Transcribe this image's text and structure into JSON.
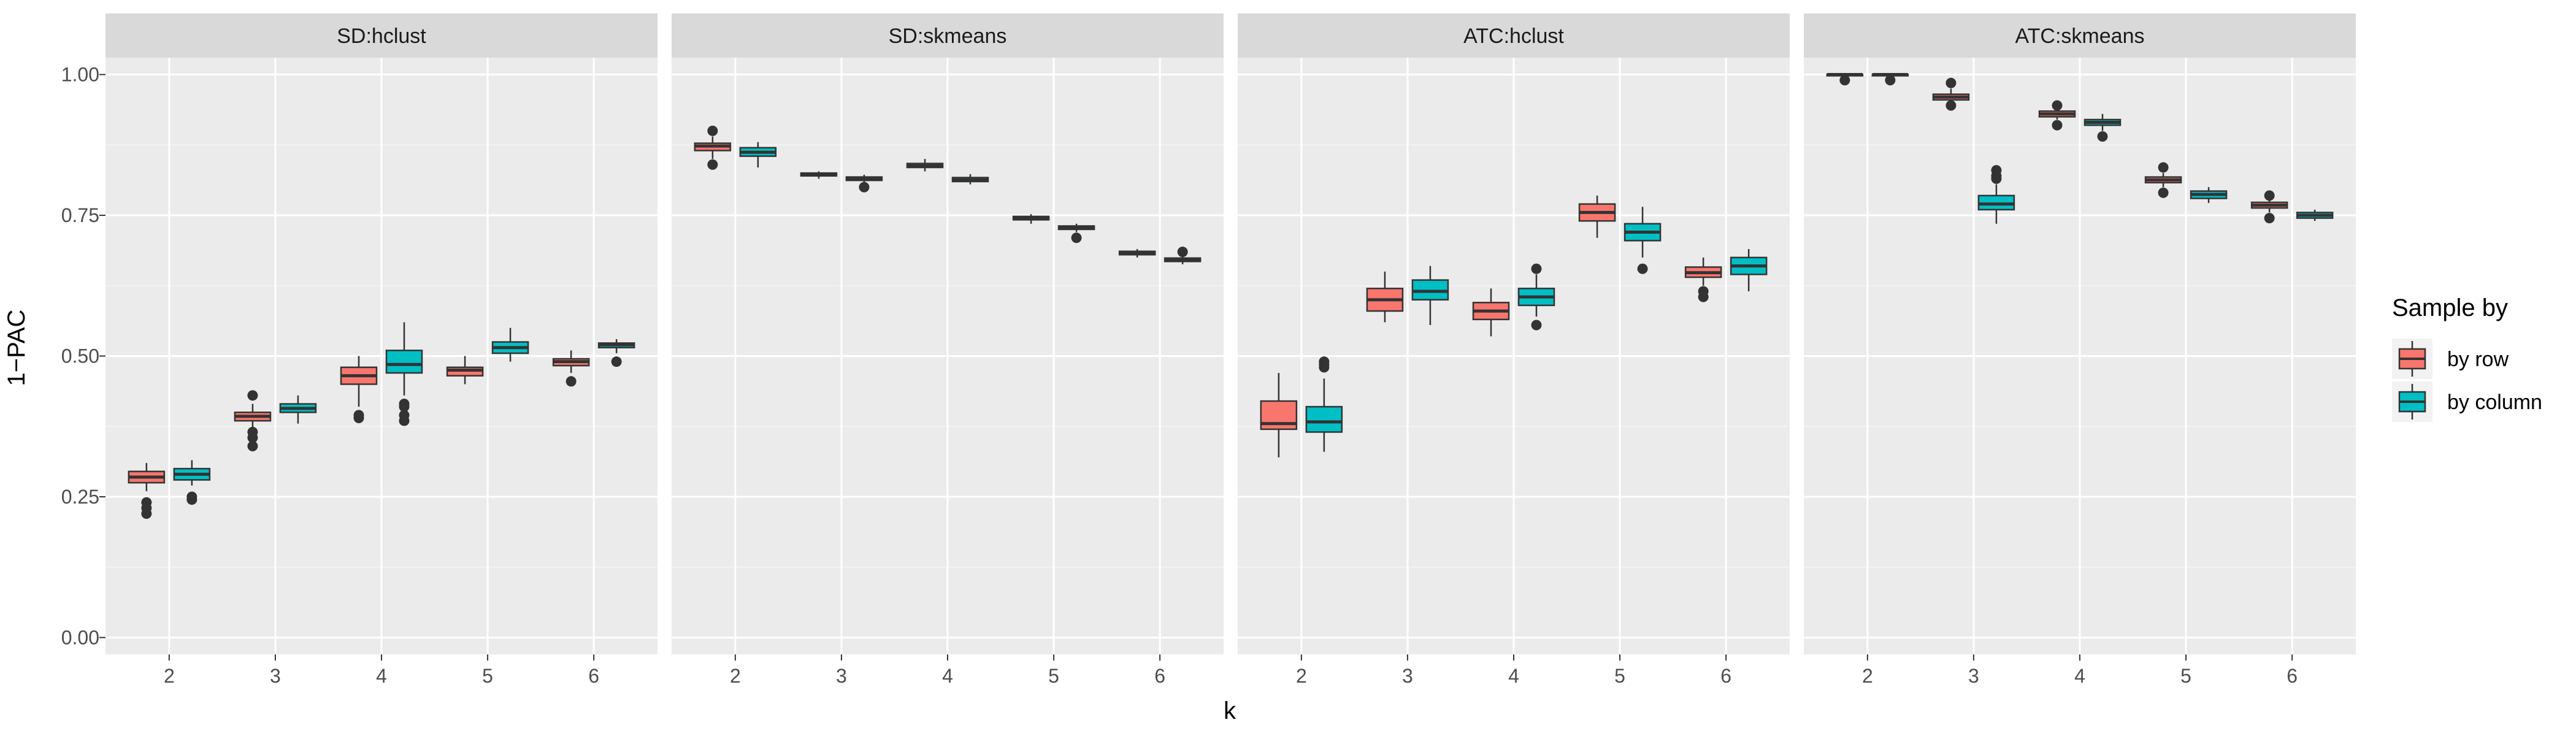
{
  "chart_data": {
    "type": "boxplot",
    "xlabel": "k",
    "ylabel": "1−PAC",
    "ylim": [
      -0.03,
      1.03
    ],
    "yticks": [
      0.0,
      0.25,
      0.5,
      0.75,
      1.0
    ],
    "ytick_labels": [
      "0.00",
      "0.25",
      "0.50",
      "0.75",
      "1.00"
    ],
    "categories": [
      "2",
      "3",
      "4",
      "5",
      "6"
    ],
    "grid": true,
    "legend": {
      "title": "Sample by",
      "position": "right",
      "items": [
        {
          "label": "by row",
          "color": "#F8766D"
        },
        {
          "label": "by column",
          "color": "#00BFC4"
        }
      ]
    },
    "panels": [
      {
        "title": "SD:hclust",
        "boxes": [
          {
            "k": "2",
            "group": "by row",
            "q1": 0.275,
            "median": 0.285,
            "q3": 0.295,
            "lo": 0.26,
            "hi": 0.31,
            "outliers": [
              0.22,
              0.23,
              0.24
            ]
          },
          {
            "k": "2",
            "group": "by column",
            "q1": 0.28,
            "median": 0.29,
            "q3": 0.3,
            "lo": 0.27,
            "hi": 0.315,
            "outliers": [
              0.245,
              0.25
            ]
          },
          {
            "k": "3",
            "group": "by row",
            "q1": 0.385,
            "median": 0.393,
            "q3": 0.4,
            "lo": 0.37,
            "hi": 0.415,
            "outliers": [
              0.34,
              0.355,
              0.365,
              0.43
            ]
          },
          {
            "k": "3",
            "group": "by column",
            "q1": 0.4,
            "median": 0.407,
            "q3": 0.415,
            "lo": 0.38,
            "hi": 0.43,
            "outliers": []
          },
          {
            "k": "4",
            "group": "by row",
            "q1": 0.45,
            "median": 0.465,
            "q3": 0.48,
            "lo": 0.41,
            "hi": 0.5,
            "outliers": [
              0.39,
              0.395
            ]
          },
          {
            "k": "4",
            "group": "by column",
            "q1": 0.47,
            "median": 0.485,
            "q3": 0.51,
            "lo": 0.43,
            "hi": 0.56,
            "outliers": [
              0.385,
              0.395,
              0.41,
              0.415
            ]
          },
          {
            "k": "5",
            "group": "by row",
            "q1": 0.465,
            "median": 0.475,
            "q3": 0.48,
            "lo": 0.45,
            "hi": 0.5,
            "outliers": []
          },
          {
            "k": "5",
            "group": "by column",
            "q1": 0.505,
            "median": 0.515,
            "q3": 0.525,
            "lo": 0.49,
            "hi": 0.55,
            "outliers": []
          },
          {
            "k": "6",
            "group": "by row",
            "q1": 0.483,
            "median": 0.49,
            "q3": 0.495,
            "lo": 0.47,
            "hi": 0.51,
            "outliers": [
              0.455
            ]
          },
          {
            "k": "6",
            "group": "by column",
            "q1": 0.515,
            "median": 0.52,
            "q3": 0.523,
            "lo": 0.505,
            "hi": 0.53,
            "outliers": [
              0.49
            ]
          }
        ]
      },
      {
        "title": "SD:skmeans",
        "boxes": [
          {
            "k": "2",
            "group": "by row",
            "q1": 0.865,
            "median": 0.873,
            "q3": 0.878,
            "lo": 0.85,
            "hi": 0.89,
            "outliers": [
              0.84,
              0.9
            ]
          },
          {
            "k": "2",
            "group": "by column",
            "q1": 0.855,
            "median": 0.862,
            "q3": 0.87,
            "lo": 0.835,
            "hi": 0.88,
            "outliers": []
          },
          {
            "k": "3",
            "group": "by row",
            "q1": 0.82,
            "median": 0.822,
            "q3": 0.825,
            "lo": 0.815,
            "hi": 0.828,
            "outliers": []
          },
          {
            "k": "3",
            "group": "by column",
            "q1": 0.812,
            "median": 0.815,
            "q3": 0.818,
            "lo": 0.808,
            "hi": 0.822,
            "outliers": [
              0.8
            ]
          },
          {
            "k": "4",
            "group": "by row",
            "q1": 0.835,
            "median": 0.838,
            "q3": 0.842,
            "lo": 0.828,
            "hi": 0.85,
            "outliers": []
          },
          {
            "k": "4",
            "group": "by column",
            "q1": 0.81,
            "median": 0.813,
            "q3": 0.817,
            "lo": 0.805,
            "hi": 0.823,
            "outliers": []
          },
          {
            "k": "5",
            "group": "by row",
            "q1": 0.742,
            "median": 0.745,
            "q3": 0.748,
            "lo": 0.735,
            "hi": 0.752,
            "outliers": []
          },
          {
            "k": "5",
            "group": "by column",
            "q1": 0.725,
            "median": 0.728,
            "q3": 0.731,
            "lo": 0.72,
            "hi": 0.735,
            "outliers": [
              0.71
            ]
          },
          {
            "k": "6",
            "group": "by row",
            "q1": 0.68,
            "median": 0.683,
            "q3": 0.686,
            "lo": 0.675,
            "hi": 0.69,
            "outliers": []
          },
          {
            "k": "6",
            "group": "by column",
            "q1": 0.668,
            "median": 0.67,
            "q3": 0.674,
            "lo": 0.663,
            "hi": 0.68,
            "outliers": [
              0.685
            ]
          }
        ]
      },
      {
        "title": "ATC:hclust",
        "boxes": [
          {
            "k": "2",
            "group": "by row",
            "q1": 0.37,
            "median": 0.38,
            "q3": 0.42,
            "lo": 0.32,
            "hi": 0.47,
            "outliers": []
          },
          {
            "k": "2",
            "group": "by column",
            "q1": 0.365,
            "median": 0.383,
            "q3": 0.41,
            "lo": 0.33,
            "hi": 0.46,
            "outliers": [
              0.48,
              0.485,
              0.49
            ]
          },
          {
            "k": "3",
            "group": "by row",
            "q1": 0.58,
            "median": 0.6,
            "q3": 0.62,
            "lo": 0.56,
            "hi": 0.65,
            "outliers": []
          },
          {
            "k": "3",
            "group": "by column",
            "q1": 0.6,
            "median": 0.615,
            "q3": 0.635,
            "lo": 0.555,
            "hi": 0.66,
            "outliers": []
          },
          {
            "k": "4",
            "group": "by row",
            "q1": 0.565,
            "median": 0.58,
            "q3": 0.595,
            "lo": 0.535,
            "hi": 0.62,
            "outliers": []
          },
          {
            "k": "4",
            "group": "by column",
            "q1": 0.59,
            "median": 0.605,
            "q3": 0.62,
            "lo": 0.57,
            "hi": 0.645,
            "outliers": [
              0.555,
              0.655
            ]
          },
          {
            "k": "5",
            "group": "by row",
            "q1": 0.74,
            "median": 0.755,
            "q3": 0.77,
            "lo": 0.71,
            "hi": 0.785,
            "outliers": []
          },
          {
            "k": "5",
            "group": "by column",
            "q1": 0.705,
            "median": 0.72,
            "q3": 0.735,
            "lo": 0.675,
            "hi": 0.765,
            "outliers": [
              0.655
            ]
          },
          {
            "k": "6",
            "group": "by row",
            "q1": 0.64,
            "median": 0.648,
            "q3": 0.658,
            "lo": 0.625,
            "hi": 0.675,
            "outliers": [
              0.605,
              0.615
            ]
          },
          {
            "k": "6",
            "group": "by column",
            "q1": 0.645,
            "median": 0.66,
            "q3": 0.675,
            "lo": 0.615,
            "hi": 0.69,
            "outliers": []
          }
        ]
      },
      {
        "title": "ATC:skmeans",
        "boxes": [
          {
            "k": "2",
            "group": "by row",
            "q1": 0.998,
            "median": 1.0,
            "q3": 1.0,
            "lo": 0.995,
            "hi": 1.0,
            "outliers": [
              0.99
            ]
          },
          {
            "k": "2",
            "group": "by column",
            "q1": 0.998,
            "median": 1.0,
            "q3": 1.0,
            "lo": 0.995,
            "hi": 1.0,
            "outliers": [
              0.99
            ]
          },
          {
            "k": "3",
            "group": "by row",
            "q1": 0.955,
            "median": 0.96,
            "q3": 0.965,
            "lo": 0.95,
            "hi": 0.975,
            "outliers": [
              0.945,
              0.985
            ]
          },
          {
            "k": "3",
            "group": "by column",
            "q1": 0.76,
            "median": 0.77,
            "q3": 0.785,
            "lo": 0.735,
            "hi": 0.805,
            "outliers": [
              0.815,
              0.82,
              0.83
            ]
          },
          {
            "k": "4",
            "group": "by row",
            "q1": 0.925,
            "median": 0.93,
            "q3": 0.935,
            "lo": 0.92,
            "hi": 0.94,
            "outliers": [
              0.91,
              0.945
            ]
          },
          {
            "k": "4",
            "group": "by column",
            "q1": 0.91,
            "median": 0.915,
            "q3": 0.92,
            "lo": 0.9,
            "hi": 0.93,
            "outliers": [
              0.89
            ]
          },
          {
            "k": "5",
            "group": "by row",
            "q1": 0.808,
            "median": 0.813,
            "q3": 0.818,
            "lo": 0.8,
            "hi": 0.825,
            "outliers": [
              0.79,
              0.835
            ]
          },
          {
            "k": "5",
            "group": "by column",
            "q1": 0.78,
            "median": 0.787,
            "q3": 0.793,
            "lo": 0.772,
            "hi": 0.8,
            "outliers": []
          },
          {
            "k": "6",
            "group": "by row",
            "q1": 0.763,
            "median": 0.768,
            "q3": 0.773,
            "lo": 0.755,
            "hi": 0.78,
            "outliers": [
              0.745,
              0.785
            ]
          },
          {
            "k": "6",
            "group": "by column",
            "q1": 0.745,
            "median": 0.75,
            "q3": 0.755,
            "lo": 0.74,
            "hi": 0.76,
            "outliers": []
          }
        ]
      }
    ]
  }
}
